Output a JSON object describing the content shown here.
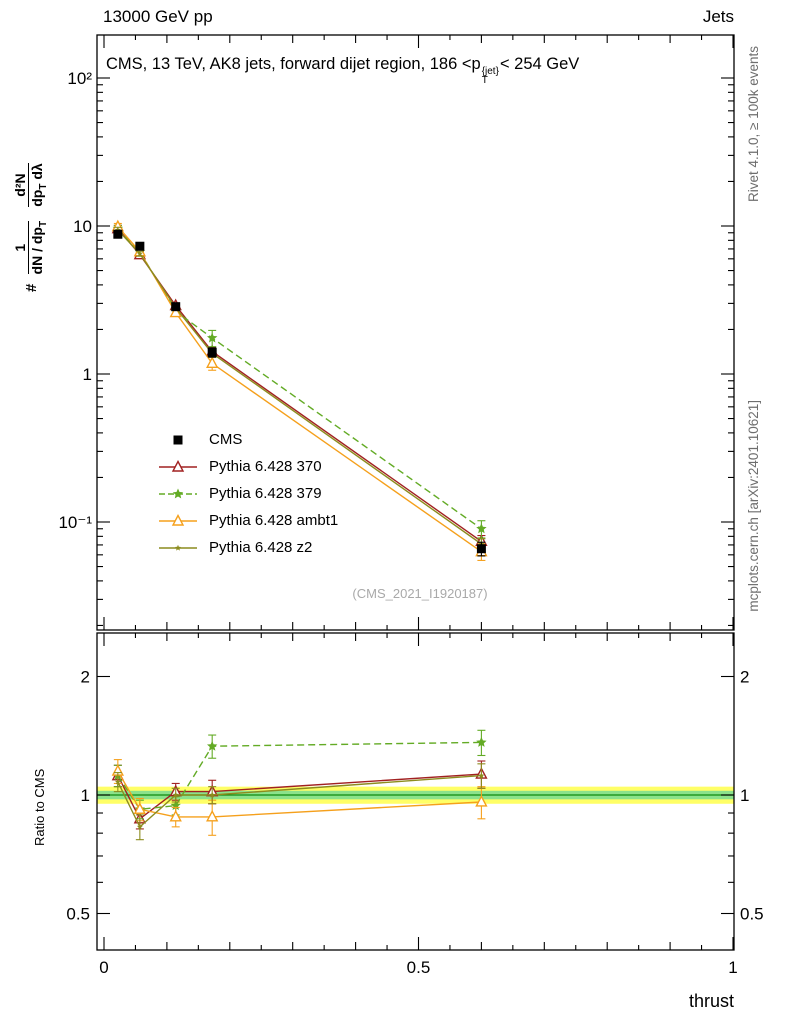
{
  "header": {
    "left": "13000 GeV pp",
    "right": "Jets"
  },
  "title": {
    "pre": "CMS, 13 TeV, AK8 jets, forward dijet region, 186 <p",
    "sup": "{jet}",
    "sub": "T",
    "post": "< 254 GeV"
  },
  "side_notes": {
    "right_top": "Rivet 4.1.0, ≥ 100k events",
    "right_bottom": "mcplots.cern.ch [arXiv:2401.10621]"
  },
  "watermark": "(CMS_2021_I1920187)",
  "axes": {
    "xlabel": "thrust",
    "ratio_ylabel": "Ratio to CMS",
    "ylabel": {
      "hash": "#",
      "num1": "1",
      "den1a": "dN / dp",
      "den1sub": "T",
      "num2": "d²N",
      "den2a": "dp",
      "den2sub": "T",
      "den2b": " dλ"
    }
  },
  "chart_data": {
    "type": "line",
    "title": "CMS, 13 TeV, AK8 jets, forward dijet region, 186 < pT{jet} < 254 GeV",
    "xlabel": "thrust",
    "ylabel": "# 1/(dN/dpT) d²N/(dpT dλ)",
    "ratio_ylabel": "Ratio to CMS",
    "yscale": "log",
    "grid": false,
    "legend_position": "middle-left",
    "x": [
      0.022,
      0.057,
      0.114,
      0.172,
      0.6
    ],
    "xlim": [
      -0.011,
      1.002
    ],
    "ylim_main": [
      0.019,
      195
    ],
    "ylim_ratio": [
      0.4,
      2.57
    ],
    "xticks": [
      {
        "v": 0,
        "t": "0"
      },
      {
        "v": 0.5,
        "t": "0.5"
      },
      {
        "v": 1,
        "t": "1"
      }
    ],
    "yticks": [
      {
        "v": 100,
        "t": "10²"
      },
      {
        "v": 10,
        "t": "10"
      },
      {
        "v": 1,
        "t": "1"
      },
      {
        "v": 0.1,
        "t": "10⁻¹"
      }
    ],
    "ratio_ticks": [
      {
        "v": 2,
        "t": "2"
      },
      {
        "v": 1,
        "t": "1"
      },
      {
        "v": 0.5,
        "t": "0.5"
      }
    ],
    "ratio_band": {
      "yellow": 0.05,
      "green": 0.025,
      "yellow_color": "#ffff66",
      "green_color": "#8be28b",
      "center_line_color": "#0f8a0f"
    },
    "series": [
      {
        "key": "cms",
        "name": "CMS",
        "color": "#000000",
        "marker": "square",
        "line": "none",
        "y": [
          8.8,
          7.3,
          2.85,
          1.4,
          0.066
        ],
        "yerr": [
          0.5,
          0.4,
          0.15,
          0.1,
          0.007
        ],
        "ratio": null,
        "ratio_err": null
      },
      {
        "key": "pythia-370",
        "name": "Pythia 6.428 370",
        "color": "#a12121",
        "marker": "triangle",
        "line": "solid",
        "y": [
          9.6,
          6.4,
          2.9,
          1.42,
          0.074
        ],
        "yerr": [
          0.5,
          0.3,
          0.12,
          0.1,
          0.007
        ],
        "ratio": [
          1.12,
          0.87,
          1.02,
          1.02,
          1.13
        ],
        "ratio_err": [
          0.07,
          0.05,
          0.05,
          0.07,
          0.09
        ]
      },
      {
        "key": "pythia-379",
        "name": "Pythia 6.428 379",
        "color": "#63ab25",
        "marker": "star",
        "line": "dashed",
        "y": [
          9.6,
          6.7,
          2.65,
          1.75,
          0.09
        ],
        "yerr": [
          0.5,
          0.3,
          0.12,
          0.22,
          0.012
        ],
        "ratio": [
          1.12,
          0.92,
          0.94,
          1.33,
          1.36
        ],
        "ratio_err": [
          0.07,
          0.05,
          0.05,
          0.09,
          0.1
        ]
      },
      {
        "key": "pythia-ambt1",
        "name": "Pythia 6.428 ambt1",
        "color": "#f5a01c",
        "marker": "triangle",
        "line": "solid",
        "y": [
          9.9,
          6.7,
          2.6,
          1.18,
          0.063
        ],
        "yerr": [
          0.5,
          0.3,
          0.12,
          0.12,
          0.008
        ],
        "ratio": [
          1.15,
          0.92,
          0.88,
          0.88,
          0.96
        ],
        "ratio_err": [
          0.08,
          0.06,
          0.05,
          0.09,
          0.09
        ]
      },
      {
        "key": "pythia-z2",
        "name": "Pythia 6.428 z2",
        "color": "#8c8c1e",
        "marker": "star_small",
        "line": "solid",
        "y": [
          9.4,
          6.5,
          2.8,
          1.38,
          0.071
        ],
        "yerr": [
          0.4,
          0.25,
          0.1,
          0.08,
          0.006
        ],
        "ratio": [
          1.08,
          0.83,
          1.0,
          1.0,
          1.12
        ],
        "ratio_err": [
          0.06,
          0.06,
          0.04,
          0.05,
          0.08
        ]
      }
    ]
  }
}
